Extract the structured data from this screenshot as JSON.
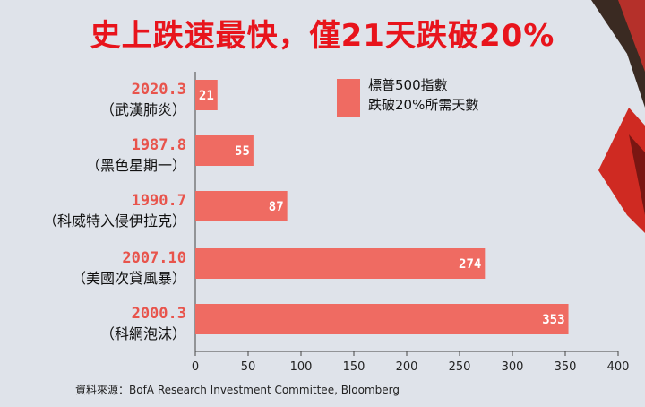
{
  "title": "史上跌速最快，僅21天跌破20%",
  "source": "資料來源：BofA Research Investment Committee, Bloomberg",
  "legend": {
    "lines": [
      "標普500指數",
      "跌破20%所需天數"
    ]
  },
  "colors": {
    "bar": "#ef6b62",
    "date_label": "#e8544c",
    "title": "#e8141c",
    "background": "#dfe3ea",
    "value_label": "#ffffff"
  },
  "chart_data": {
    "type": "bar",
    "orientation": "horizontal",
    "title": "史上跌速最快，僅21天跌破20%",
    "categories": [
      {
        "date": "2020.3",
        "event": "（武漢肺炎）"
      },
      {
        "date": "1987.8",
        "event": "（黑色星期一）"
      },
      {
        "date": "1990.7",
        "event": "（科威特入侵伊拉克）"
      },
      {
        "date": "2007.10",
        "event": "（美國次貸風暴）"
      },
      {
        "date": "2000.3",
        "event": "（科網泡沫）"
      }
    ],
    "values": [
      21,
      55,
      87,
      274,
      353
    ],
    "series": [
      {
        "name": "標普500指數 跌破20%所需天數",
        "values": [
          21,
          55,
          87,
          274,
          353
        ]
      }
    ],
    "xlim": [
      0,
      400
    ],
    "xticks": [
      0,
      50,
      100,
      150,
      200,
      250,
      300,
      350,
      400
    ],
    "xlabel": "",
    "ylabel": "",
    "grid": false,
    "legend_position": "top-right"
  }
}
